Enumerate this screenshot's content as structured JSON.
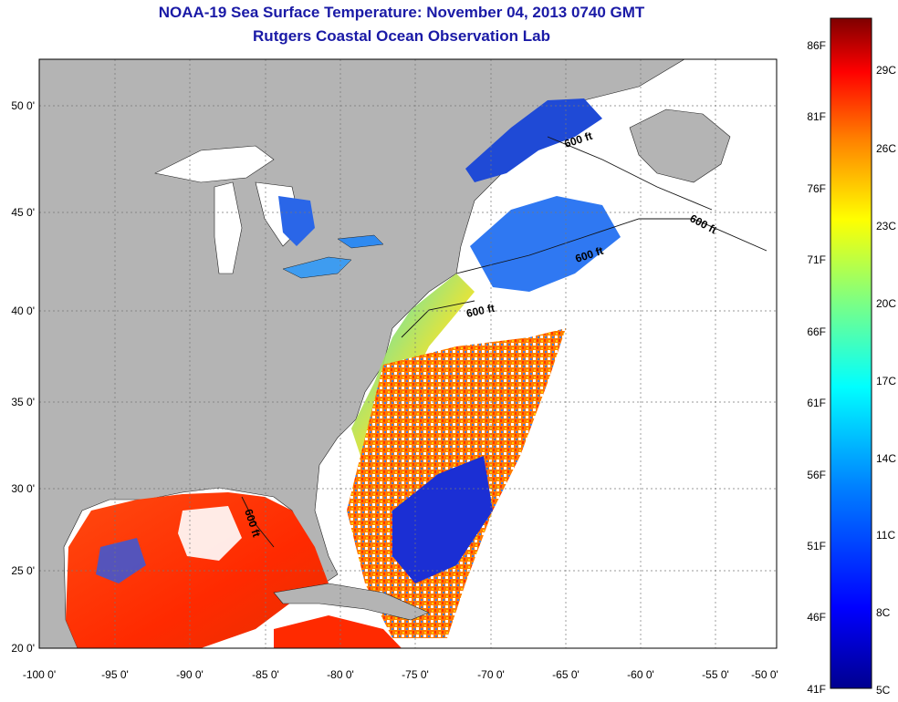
{
  "title": "NOAA-19 Sea Surface Temperature:  November 04, 2013 0740 GMT",
  "subtitle": "Rutgers Coastal Ocean Observation Lab",
  "map": {
    "lon_range": [
      -100,
      -50
    ],
    "lat_range": [
      20,
      52
    ],
    "lon_ticks": [
      "-100 0'",
      "-95 0'",
      "-90 0'",
      "-85 0'",
      "-80 0'",
      "-75 0'",
      "-70 0'",
      "-65 0'",
      "-60 0'",
      "-55 0'",
      "-50 0'"
    ],
    "lat_ticks": [
      "50 0'",
      "45 0'",
      "40 0'",
      "35 0'",
      "30 0'",
      "25 0'",
      "20 0'"
    ],
    "contour_label": "600 ft",
    "land_color": "#b4b4b4",
    "cloud_color": "#ffffff"
  },
  "colorbar": {
    "fahrenheit": [
      "86F",
      "81F",
      "76F",
      "71F",
      "66F",
      "61F",
      "56F",
      "51F",
      "46F",
      "41F"
    ],
    "celsius": [
      "29C",
      "26C",
      "23C",
      "20C",
      "17C",
      "14C",
      "11C",
      "8C",
      "5C"
    ],
    "colors": [
      "#7f0000",
      "#ff0000",
      "#ff8000",
      "#ffff00",
      "#80ff80",
      "#00ffff",
      "#0080ff",
      "#0000ff",
      "#00008f"
    ]
  }
}
